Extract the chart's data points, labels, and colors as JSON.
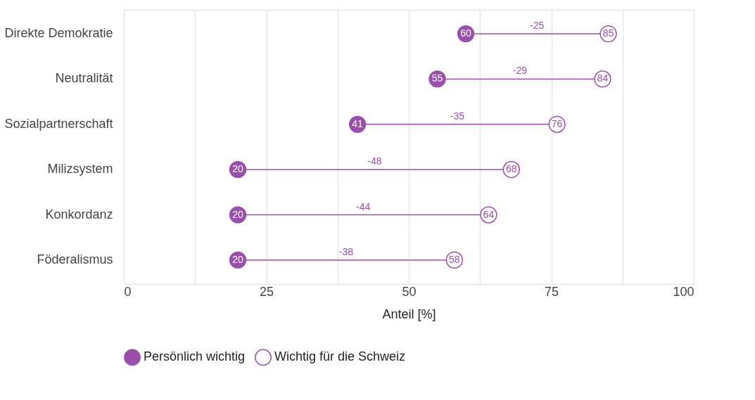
{
  "chart_data": {
    "type": "scatter",
    "xlabel": "Anteil [%]",
    "categories": [
      "Direkte Demokratie",
      "Neutralität",
      "Sozialpartnerschaft",
      "Milizsystem",
      "Konkordanz",
      "Föderalismus"
    ],
    "orientation": "horizontal",
    "series": [
      {
        "name": "Persönlich wichtig",
        "color": "#9b4fad",
        "values": [
          60,
          55,
          41,
          20,
          20,
          20
        ]
      },
      {
        "name": "Wichtig für die Schweiz",
        "color": "#9b4fad",
        "values": [
          85,
          84,
          76,
          68,
          64,
          58
        ]
      }
    ],
    "xlim": [
      0,
      100
    ],
    "xticks": [
      0,
      {
        "value": 12.5,
        "label": null
      },
      25,
      {
        "value": 37.5,
        "label": null
      },
      50,
      {
        "value": 62.5,
        "label": null
      },
      75,
      {
        "value": 87.5,
        "label": null
      },
      100
    ],
    "annotations": [
      "-25",
      "-29",
      "-35",
      "-48",
      "-44",
      "-38"
    ],
    "data_labels": true,
    "grid": "x",
    "legend": "bottom",
    "marker": "circle"
  }
}
